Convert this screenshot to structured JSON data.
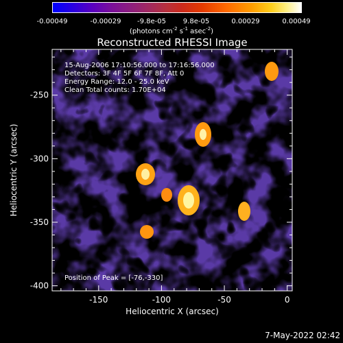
{
  "colorbar": {
    "ticks": [
      "-0.00049",
      "-0.00029",
      "-9.8e-05",
      "9.8e-05",
      "0.00029",
      "0.00049"
    ],
    "units_main": "(photons cm",
    "units_sup1": "-2",
    "units_mid": " s",
    "units_sup2": "-1",
    "units_end": " asec",
    "units_sup3": "-2",
    "units_close": ")"
  },
  "chart_data": {
    "type": "heatmap",
    "title": "Reconstructed RHESSI Image",
    "xlabel": "Heliocentric X (arcsec)",
    "ylabel": "Heliocentric Y (arcsec)",
    "xlim": [
      -187,
      4
    ],
    "ylim": [
      -404,
      -214
    ],
    "x_ticks": [
      -150,
      -100,
      -50,
      0
    ],
    "y_ticks": [
      -250,
      -300,
      -350,
      -400
    ],
    "color_range": [
      -0.00049,
      0.00049
    ],
    "peak": [
      -76,
      -330
    ],
    "info_lines": [
      "15-Aug-2006 17:10:56.000 to 17:16:56.000",
      "Detectors: 3F 4F 5F 6F 7F 8F, Att 0",
      "Energy Range: 12.0 - 25.0 keV",
      "Clean     Total counts: 1.70E+04"
    ],
    "peak_label": "Position of Peak = [-76,-330]"
  },
  "footer": {
    "timestamp": "7-May-2022 02:42"
  },
  "colors": {
    "background": "#000000",
    "axis": "#ffffff"
  }
}
